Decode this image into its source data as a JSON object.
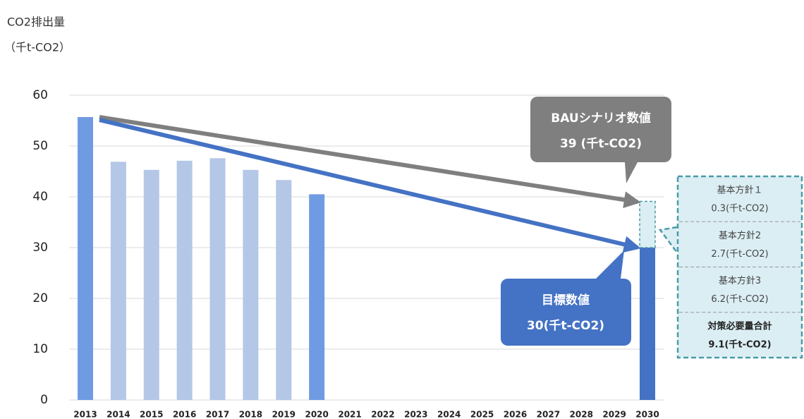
{
  "chart_data": {
    "type": "bar",
    "y_label_line1": "CO2排出量",
    "y_label_line2": "（千t-CO2）",
    "categories": [
      "2013",
      "2014",
      "2015",
      "2016",
      "2017",
      "2018",
      "2019",
      "2020",
      "2021",
      "2022",
      "2023",
      "2024",
      "2025",
      "2026",
      "2027",
      "2028",
      "2029",
      "2030"
    ],
    "values": [
      55.7,
      46.9,
      45.3,
      47.1,
      47.6,
      45.3,
      43.3,
      40.5,
      null,
      null,
      null,
      null,
      null,
      null,
      null,
      null,
      null,
      30
    ],
    "colors": [
      "#6f9be3",
      "#b4c7e7",
      "#b4c7e7",
      "#b4c7e7",
      "#b4c7e7",
      "#b4c7e7",
      "#b4c7e7",
      "#6f9be3",
      null,
      null,
      null,
      null,
      null,
      null,
      null,
      null,
      null,
      "#4472c4"
    ],
    "ylim": [
      0,
      60
    ],
    "yticks": [
      0,
      10,
      20,
      30,
      40,
      50,
      60
    ],
    "grid": true,
    "bau": {
      "value": 39,
      "title": "BAUシナリオ数値",
      "label": "39 (千t-CO2)",
      "color": "#7f7f7f"
    },
    "target": {
      "value": 30,
      "title": "目標数値",
      "label": "30(千t-CO2)",
      "color": "#4472c4"
    },
    "breakdown": [
      {
        "name": "基本方針１",
        "label": "0.3(千t-CO2)"
      },
      {
        "name": "基本方針2",
        "label": "2.7(千t-CO2)"
      },
      {
        "name": "基本方針3",
        "label": "6.2(千t-CO2)"
      }
    ],
    "reduction": {
      "name": "対策必要量合計",
      "value": 9.1,
      "label": "9.1(千t-CO2)",
      "color": "#dbeef3"
    }
  }
}
